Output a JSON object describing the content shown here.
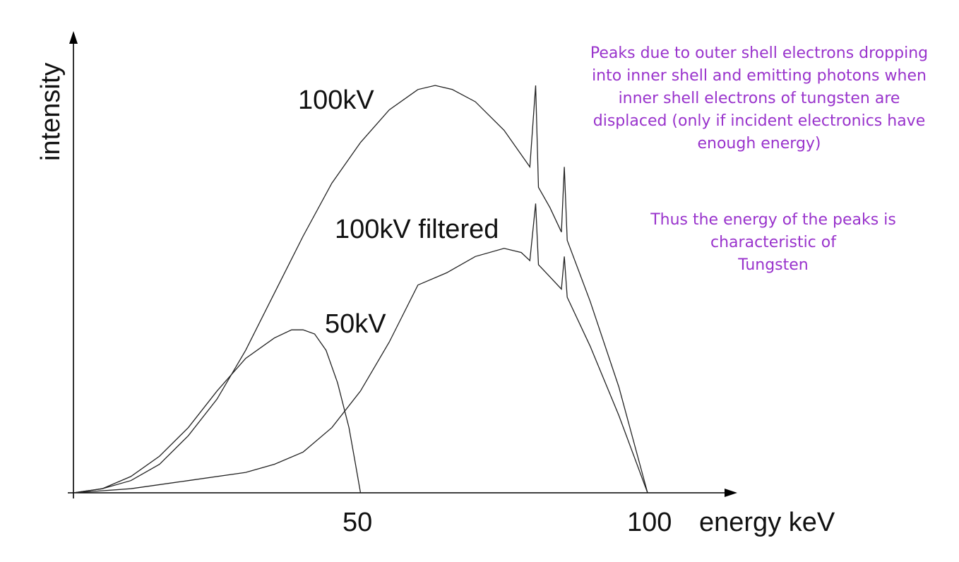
{
  "chart_data": {
    "type": "line",
    "xlabel": "energy keV",
    "ylabel": "intensity",
    "x_ticks": [
      {
        "value": 50,
        "label": "50"
      },
      {
        "value": 100,
        "label": "100"
      }
    ],
    "xlim": [
      0,
      130
    ],
    "ylim": [
      0,
      1
    ],
    "y_tick_labels": false,
    "grid": false,
    "legend": "none (series labelled directly on curves)",
    "series": [
      {
        "name": "100kV",
        "color": "#222222",
        "points": [
          [
            0,
            0
          ],
          [
            5,
            0.01
          ],
          [
            10,
            0.03
          ],
          [
            15,
            0.07
          ],
          [
            20,
            0.14
          ],
          [
            25,
            0.23
          ],
          [
            30,
            0.35
          ],
          [
            35,
            0.49
          ],
          [
            40,
            0.63
          ],
          [
            45,
            0.76
          ],
          [
            50,
            0.86
          ],
          [
            55,
            0.94
          ],
          [
            60,
            0.99
          ],
          [
            63,
            1.0
          ],
          [
            66,
            0.99
          ],
          [
            70,
            0.96
          ],
          [
            75,
            0.89
          ],
          [
            79.5,
            0.8
          ],
          [
            80.5,
            1.0
          ],
          [
            81,
            0.75
          ],
          [
            83,
            0.7
          ],
          [
            85,
            0.64
          ],
          [
            85.5,
            0.8
          ],
          [
            86,
            0.62
          ],
          [
            90,
            0.47
          ],
          [
            95,
            0.26
          ],
          [
            100,
            0.0
          ]
        ]
      },
      {
        "name": "100kV filtered",
        "color": "#222222",
        "points": [
          [
            0,
            0
          ],
          [
            10,
            0.01
          ],
          [
            20,
            0.03
          ],
          [
            30,
            0.05
          ],
          [
            35,
            0.07
          ],
          [
            40,
            0.1
          ],
          [
            45,
            0.16
          ],
          [
            50,
            0.25
          ],
          [
            55,
            0.37
          ],
          [
            60,
            0.51
          ],
          [
            65,
            0.54
          ],
          [
            70,
            0.58
          ],
          [
            75,
            0.6
          ],
          [
            78,
            0.59
          ],
          [
            79.5,
            0.57
          ],
          [
            80.5,
            0.71
          ],
          [
            81,
            0.56
          ],
          [
            83,
            0.53
          ],
          [
            85,
            0.5
          ],
          [
            85.5,
            0.58
          ],
          [
            86,
            0.48
          ],
          [
            90,
            0.36
          ],
          [
            95,
            0.19
          ],
          [
            100,
            0.0
          ]
        ]
      },
      {
        "name": "50kV",
        "color": "#222222",
        "points": [
          [
            0,
            0
          ],
          [
            5,
            0.01
          ],
          [
            10,
            0.04
          ],
          [
            15,
            0.09
          ],
          [
            20,
            0.16
          ],
          [
            25,
            0.25
          ],
          [
            30,
            0.33
          ],
          [
            35,
            0.38
          ],
          [
            38,
            0.4
          ],
          [
            40,
            0.4
          ],
          [
            42,
            0.39
          ],
          [
            44,
            0.35
          ],
          [
            46,
            0.27
          ],
          [
            48,
            0.16
          ],
          [
            49,
            0.08
          ],
          [
            50,
            0.0
          ]
        ]
      }
    ],
    "annotations": [
      {
        "lines": [
          "Peaks due to outer shell electrons dropping",
          "into inner shell and emitting photons when",
          "inner shell electrons of tungsten are",
          "displaced (only if incident electronics have",
          "enough energy)"
        ],
        "color": "#9933cc"
      },
      {
        "lines": [
          "Thus the energy of the peaks is",
          "characteristic of",
          "Tungsten"
        ],
        "color": "#9933cc"
      }
    ]
  }
}
